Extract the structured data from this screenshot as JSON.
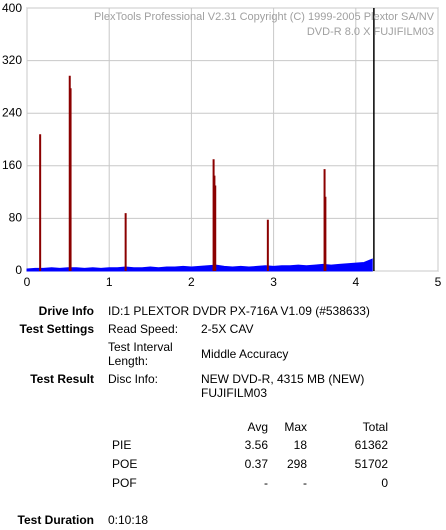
{
  "chart_data": {
    "type": "line",
    "header": [
      "PlexTools Professional V2.31 Copyright (C) 1999-2005 Plextor SA/NV",
      "DVD-R   8.0 X   FUJIFILM03"
    ],
    "xlim": [
      0,
      5
    ],
    "xticks": [
      0,
      1,
      2,
      3,
      4,
      5
    ],
    "ylim": [
      0,
      400
    ],
    "yticks": [
      0,
      80,
      160,
      240,
      320,
      400
    ],
    "grid": true,
    "series": [
      {
        "kind": "area",
        "color": "#0000ff",
        "x": [
          0,
          0.1,
          0.2,
          0.3,
          0.4,
          0.5,
          0.6,
          0.7,
          0.8,
          0.9,
          1.0,
          1.1,
          1.2,
          1.3,
          1.4,
          1.5,
          1.6,
          1.7,
          1.8,
          1.9,
          2.0,
          2.1,
          2.2,
          2.3,
          2.4,
          2.5,
          2.6,
          2.7,
          2.8,
          2.9,
          3.0,
          3.1,
          3.2,
          3.3,
          3.4,
          3.5,
          3.6,
          3.7,
          3.8,
          3.9,
          4.0,
          4.1,
          4.2
        ],
        "values": [
          3,
          4,
          4,
          5,
          4,
          5,
          5,
          4,
          5,
          4,
          5,
          5,
          6,
          5,
          5,
          6,
          5,
          6,
          6,
          7,
          6,
          7,
          8,
          9,
          7,
          6,
          7,
          6,
          7,
          8,
          7,
          8,
          8,
          9,
          8,
          9,
          10,
          9,
          10,
          11,
          12,
          13,
          18
        ]
      },
      {
        "kind": "stem",
        "color": "#8b0000",
        "x": [
          0.16,
          0.52,
          0.53,
          1.2,
          2.27,
          2.28,
          2.29,
          2.93,
          3.62,
          3.63
        ],
        "values": [
          208,
          297,
          278,
          88,
          170,
          145,
          130,
          78,
          155,
          113
        ]
      }
    ],
    "markers": [
      {
        "x": 4.22,
        "color": "#000000"
      }
    ]
  },
  "report": {
    "drive_info": {
      "label": "Drive Info",
      "value": "ID:1 PLEXTOR DVDR PX-716A V1.09 (#538633)"
    },
    "test_settings": {
      "label": "Test Settings",
      "speed_label": "Read Speed:",
      "speed": "2-5X CAV",
      "interval_label": [
        "Test Interval",
        "Length:"
      ],
      "interval": "Middle Accuracy"
    },
    "test_result": {
      "label": "Test Result",
      "disc_label": "Disc Info:",
      "disc": [
        "NEW DVD-R, 4315 MB (NEW)",
        "FUJIFILM03"
      ]
    },
    "table": {
      "header": [
        "Avg",
        "Max",
        "Total"
      ],
      "rows": [
        [
          "PIE",
          "3.56",
          "18",
          "61362"
        ],
        [
          "POE",
          "0.37",
          "298",
          "51702"
        ],
        [
          "POF",
          "-",
          "-",
          "0"
        ]
      ]
    },
    "duration": {
      "label": "Test Duration",
      "value": "0:10:18"
    }
  }
}
